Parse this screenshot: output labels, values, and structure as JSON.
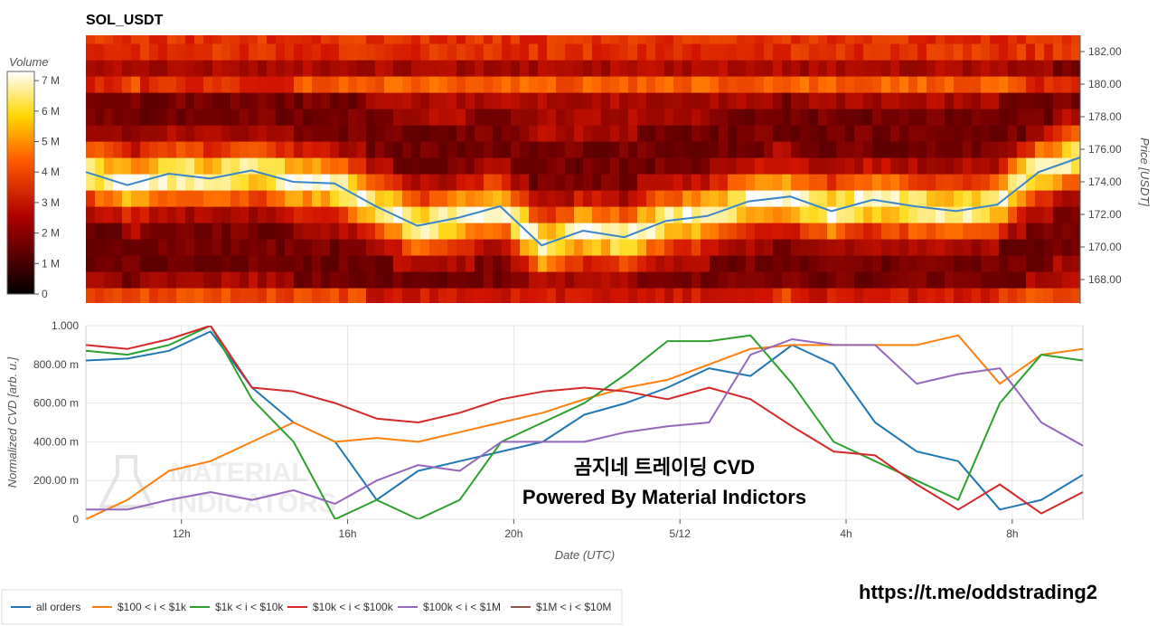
{
  "chart_data": [
    {
      "type": "heatmap",
      "title": "SOL_USDT",
      "ylabel": "Price [USDT]",
      "ylim": [
        166.5,
        183
      ],
      "yticks": [
        "168.00",
        "170.00",
        "172.00",
        "174.00",
        "176.00",
        "178.00",
        "180.00",
        "182.00"
      ],
      "colorbar": {
        "title": "Volume",
        "range": [
          0,
          7.3
        ],
        "ticks": [
          "0",
          "1 M",
          "2 M",
          "3 M",
          "4 M",
          "5 M",
          "6 M",
          "7 M"
        ]
      },
      "grid": false,
      "price_series": {
        "name": "price",
        "x": [
          0,
          1,
          2,
          3,
          4,
          5,
          6,
          7,
          8,
          9,
          10,
          11,
          12,
          13,
          14,
          15,
          16,
          17,
          18,
          19,
          20,
          21,
          22,
          23,
          24
        ],
        "y": [
          174.6,
          173.8,
          174.5,
          174.2,
          174.7,
          174.0,
          173.9,
          172.5,
          171.3,
          171.8,
          172.5,
          170.1,
          171.0,
          170.6,
          171.6,
          171.9,
          172.8,
          173.1,
          172.2,
          172.9,
          172.5,
          172.2,
          172.6,
          174.6,
          175.5
        ]
      }
    },
    {
      "type": "line",
      "xlabel": "Date (UTC)",
      "ylabel": "Normalized CVD [arb. u.]",
      "ylim": [
        0,
        1
      ],
      "yticks": [
        "0",
        "200.00 m",
        "400.00 m",
        "600.00 m",
        "800.00 m",
        "1.000"
      ],
      "xticks": [
        "12h",
        "16h",
        "20h",
        "5/12",
        "4h",
        "8h"
      ],
      "grid": true,
      "legend": "bottom",
      "series": [
        {
          "name": "all orders",
          "color": "#1f77b4",
          "x": [
            0,
            1,
            2,
            3,
            4,
            5,
            6,
            7,
            8,
            9,
            10,
            11,
            12,
            13,
            14,
            15,
            16,
            17,
            18,
            19,
            20,
            21,
            22,
            23,
            24
          ],
          "y": [
            0.82,
            0.83,
            0.87,
            0.97,
            0.68,
            0.5,
            0.4,
            0.1,
            0.25,
            0.3,
            0.35,
            0.4,
            0.54,
            0.6,
            0.68,
            0.78,
            0.74,
            0.9,
            0.8,
            0.5,
            0.35,
            0.3,
            0.05,
            0.1,
            0.23
          ]
        },
        {
          "name": "$100 < i < $1k",
          "color": "#ff7f0e",
          "x": [
            0,
            1,
            2,
            3,
            4,
            5,
            6,
            7,
            8,
            9,
            10,
            11,
            12,
            13,
            14,
            15,
            16,
            17,
            18,
            19,
            20,
            21,
            22,
            23,
            24
          ],
          "y": [
            0.0,
            0.1,
            0.25,
            0.3,
            0.4,
            0.5,
            0.4,
            0.42,
            0.4,
            0.45,
            0.5,
            0.55,
            0.62,
            0.68,
            0.72,
            0.8,
            0.88,
            0.9,
            0.9,
            0.9,
            0.9,
            0.95,
            0.7,
            0.85,
            0.88
          ]
        },
        {
          "name": "$1k < i < $10k",
          "color": "#2ca02c",
          "x": [
            0,
            1,
            2,
            3,
            4,
            5,
            6,
            7,
            8,
            9,
            10,
            11,
            12,
            13,
            14,
            15,
            16,
            17,
            18,
            19,
            20,
            21,
            22,
            23,
            24
          ],
          "y": [
            0.87,
            0.85,
            0.9,
            1.0,
            0.62,
            0.4,
            0.0,
            0.1,
            0.0,
            0.1,
            0.4,
            0.5,
            0.6,
            0.75,
            0.92,
            0.92,
            0.95,
            0.7,
            0.4,
            0.3,
            0.2,
            0.1,
            0.6,
            0.85,
            0.82
          ]
        },
        {
          "name": "$10k < i < $100k",
          "color": "#d62728",
          "x": [
            0,
            1,
            2,
            3,
            4,
            5,
            6,
            7,
            8,
            9,
            10,
            11,
            12,
            13,
            14,
            15,
            16,
            17,
            18,
            19,
            20,
            21,
            22,
            23,
            24
          ],
          "y": [
            0.9,
            0.88,
            0.93,
            1.0,
            0.68,
            0.66,
            0.6,
            0.52,
            0.5,
            0.55,
            0.62,
            0.66,
            0.68,
            0.66,
            0.62,
            0.68,
            0.62,
            0.48,
            0.35,
            0.33,
            0.18,
            0.05,
            0.18,
            0.03,
            0.14
          ]
        },
        {
          "name": "$100k < i < $1M",
          "color": "#9467bd",
          "x": [
            0,
            1,
            2,
            3,
            4,
            5,
            6,
            7,
            8,
            9,
            10,
            11,
            12,
            13,
            14,
            15,
            16,
            17,
            18,
            19,
            20,
            21,
            22,
            23,
            24
          ],
          "y": [
            0.05,
            0.05,
            0.1,
            0.14,
            0.1,
            0.15,
            0.08,
            0.2,
            0.28,
            0.25,
            0.4,
            0.4,
            0.4,
            0.45,
            0.48,
            0.5,
            0.85,
            0.93,
            0.9,
            0.9,
            0.7,
            0.75,
            0.78,
            0.5,
            0.38
          ]
        },
        {
          "name": "$1M < i < $10M",
          "color": "#8c564b",
          "x": [],
          "y": []
        }
      ]
    }
  ],
  "overlay": {
    "line1": "곰지네 트레이딩 CVD",
    "line2": "Powered By Material Indictors"
  },
  "watermark": {
    "line1": "MATERIAL",
    "line2": "INDICATORS"
  },
  "url": "https://t.me/oddstrading2"
}
